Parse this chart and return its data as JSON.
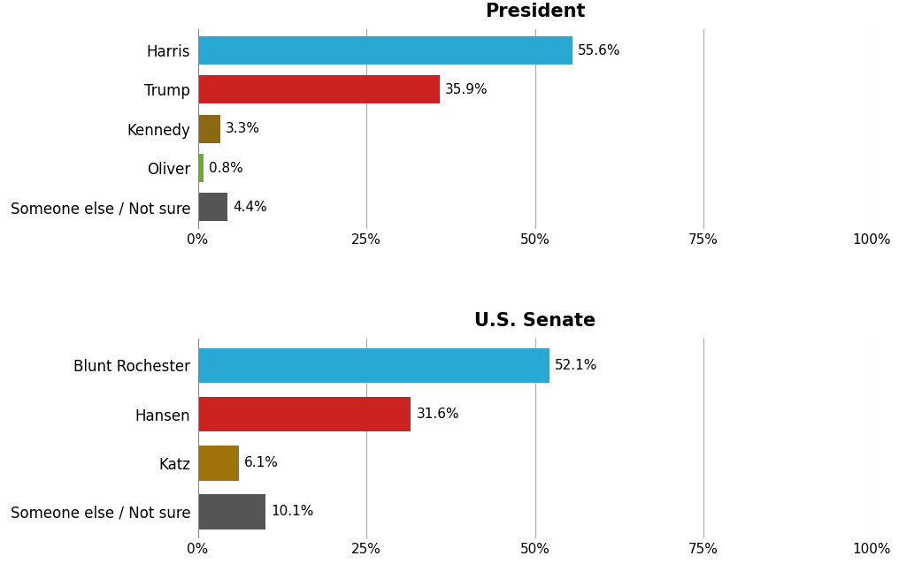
{
  "president": {
    "title": "President",
    "categories": [
      "Harris",
      "Trump",
      "Kennedy",
      "Oliver",
      "Someone else / Not sure"
    ],
    "values": [
      55.6,
      35.9,
      3.3,
      0.8,
      4.4
    ],
    "colors": [
      "#29A8D4",
      "#CC2222",
      "#8B6914",
      "#6BAD2A",
      "#555555"
    ],
    "labels": [
      "55.6%",
      "35.9%",
      "3.3%",
      "0.8%",
      "4.4%"
    ]
  },
  "senate": {
    "title": "U.S. Senate",
    "categories": [
      "Blunt Rochester",
      "Hansen",
      "Katz",
      "Someone else / Not sure"
    ],
    "values": [
      52.1,
      31.6,
      6.1,
      10.1
    ],
    "colors": [
      "#29A8D4",
      "#CC2222",
      "#A0730A",
      "#555555"
    ],
    "labels": [
      "52.1%",
      "31.6%",
      "6.1%",
      "10.1%"
    ]
  },
  "xlim": [
    0,
    100
  ],
  "xticks": [
    0,
    25,
    50,
    75,
    100
  ],
  "xticklabels": [
    "0%",
    "25%",
    "50%",
    "75%",
    "100%"
  ],
  "background_color": "#ffffff",
  "bar_height": 0.72,
  "title_fontsize": 15,
  "label_fontsize": 12,
  "tick_fontsize": 11,
  "value_fontsize": 11
}
